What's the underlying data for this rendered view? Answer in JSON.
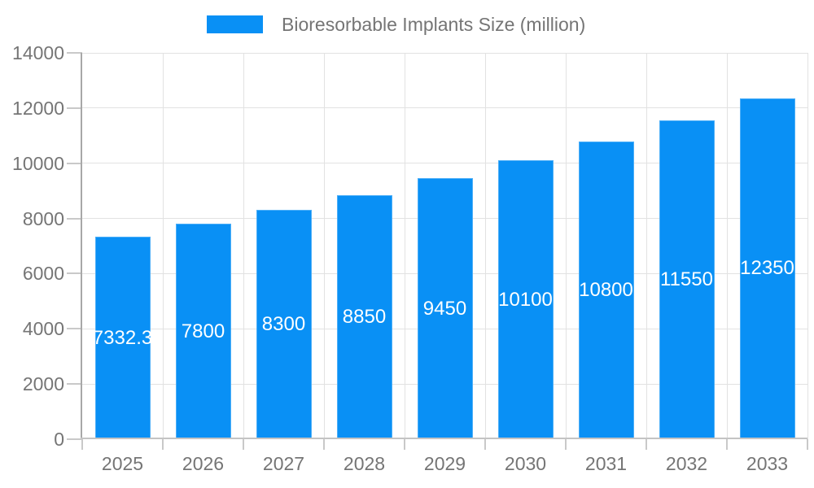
{
  "chart_data": {
    "type": "bar",
    "title": "",
    "categories": [
      "2025",
      "2026",
      "2027",
      "2028",
      "2029",
      "2030",
      "2031",
      "2032",
      "2033"
    ],
    "series": [
      {
        "name": "Bioresorbable Implants Size (million)",
        "values": [
          7332.3,
          7800,
          8300,
          8850,
          9450,
          10100,
          10800,
          11550,
          12350
        ],
        "value_labels": [
          "7332.3",
          "7800",
          "8300",
          "8850",
          "9450",
          "10100",
          "10800",
          "11550",
          "12350"
        ]
      }
    ],
    "xlabel": "",
    "ylabel": "",
    "ylim": [
      0,
      14000
    ],
    "yticks": [
      0,
      2000,
      4000,
      6000,
      8000,
      10000,
      12000,
      14000
    ],
    "grid": true,
    "legend_position": "top",
    "bar_labels_inside": true,
    "colors": {
      "bar_fill": "#0990f5",
      "bar_label_text": "#ffffff",
      "axis_text": "#757575",
      "legend_text": "#757575",
      "gridline": "#e2e2e2",
      "tick": "#c9c9c9",
      "y_axis_line": "#a8a8a8",
      "x_axis_line": "#c4c4c4"
    }
  }
}
